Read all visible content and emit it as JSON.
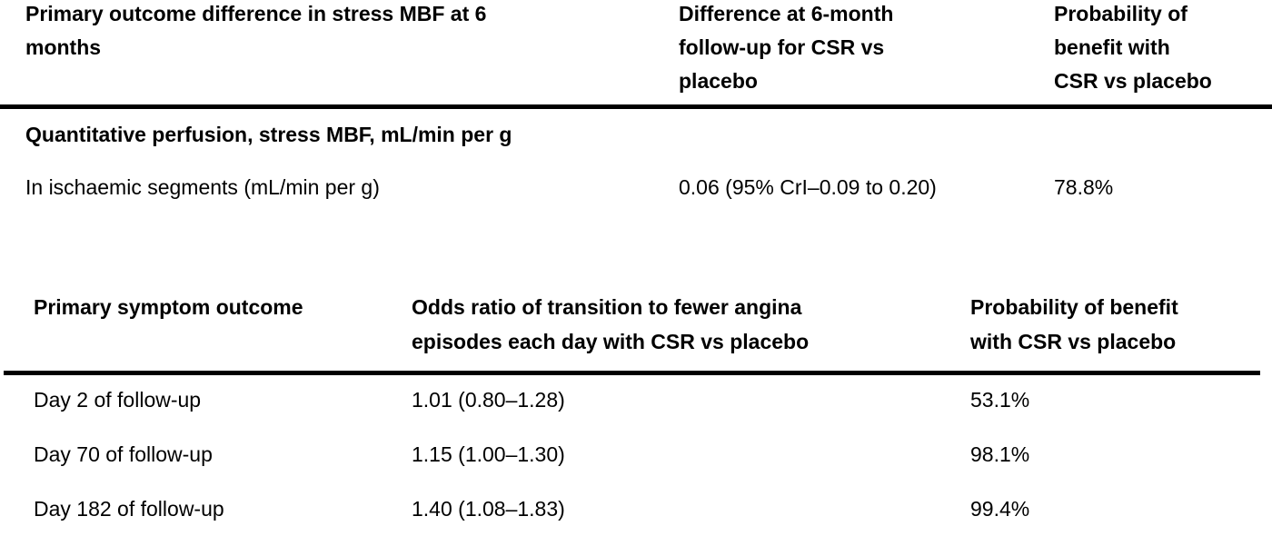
{
  "page": {
    "background_color": "#ffffff",
    "text_color": "#000000",
    "rule_color": "#000000"
  },
  "table1": {
    "header": [
      {
        "lines": [
          "Primary outcome difference in stress MBF at 6",
          "months"
        ]
      },
      {
        "lines": [
          "Difference at 6-month",
          "follow-up for CSR vs",
          "placebo"
        ]
      },
      {
        "lines": [
          "Probability of",
          "benefit with",
          "CSR vs placebo"
        ]
      }
    ],
    "section_label": "Quantitative perfusion, stress MBF, mL/min per g",
    "rows": [
      {
        "label": "In ischaemic segments (mL/min per g)",
        "difference": "0.06 (95% CrI–0.09 to 0.20)",
        "probability": "78.8%"
      }
    ]
  },
  "table2": {
    "header": [
      {
        "lines": [
          "Primary symptom outcome"
        ]
      },
      {
        "lines": [
          "Odds ratio of transition to fewer angina",
          "episodes each day with CSR vs placebo"
        ]
      },
      {
        "lines": [
          "Probability of benefit",
          "with CSR vs placebo"
        ]
      }
    ],
    "rows": [
      {
        "label": "Day 2 of follow-up",
        "odds_ratio": "1.01 (0.80–1.28)",
        "probability": "53.1%"
      },
      {
        "label": "Day 70 of follow-up",
        "odds_ratio": "1.15 (1.00–1.30)",
        "probability": "98.1%"
      },
      {
        "label": "Day 182 of follow-up",
        "odds_ratio": "1.40 (1.08–1.83)",
        "probability": "99.4%"
      }
    ]
  }
}
